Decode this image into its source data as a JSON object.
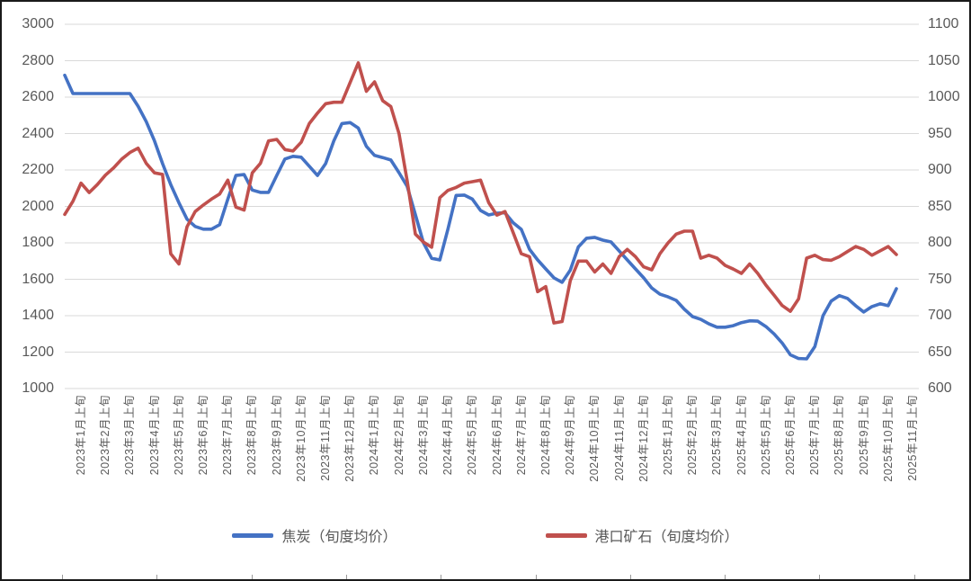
{
  "chart_data": {
    "type": "line",
    "title": "",
    "xlabel": "",
    "ylabel_left": "",
    "ylabel_right": "",
    "grid": "horizontal",
    "legend_position": "bottom",
    "background_color": "#FFFFFF",
    "text_color": "#595959",
    "gridline_color": "#D9D9D9",
    "left_axis": {
      "min": 1000,
      "max": 3000,
      "step": 200,
      "tick_labels": [
        "3000",
        "2800",
        "2600",
        "2400",
        "2200",
        "2000",
        "1800",
        "1600",
        "1400",
        "1200",
        "1000"
      ]
    },
    "right_axis": {
      "min": 600,
      "max": 1100,
      "step": 50,
      "tick_labels": [
        "1100",
        "1050",
        "1000",
        "950",
        "900",
        "850",
        "800",
        "750",
        "700",
        "650",
        "600"
      ]
    },
    "x_unit": "旬 (ten-day period), 3 per month, from 2023年1月上旬 to 2025年11月上旬",
    "x_tick_labels": [
      "2023年1月上旬",
      "2023年2月上旬",
      "2023年3月上旬",
      "2023年4月上旬",
      "2023年5月上旬",
      "2023年6月上旬",
      "2023年7月上旬",
      "2023年8月上旬",
      "2023年9月上旬",
      "2023年10月上旬",
      "2023年11月上旬",
      "2023年12月上旬",
      "2024年1月上旬",
      "2024年2月上旬",
      "2024年3月上旬",
      "2024年4月上旬",
      "2024年5月上旬",
      "2024年6月上旬",
      "2024年7月上旬",
      "2024年8月上旬",
      "2024年9月上旬",
      "2024年10月上旬",
      "2024年11月上旬",
      "2024年12月上旬",
      "2025年1月上旬",
      "2025年2月上旬",
      "2025年3月上旬",
      "2025年4月上旬",
      "2025年5月上旬",
      "2025年6月上旬",
      "2025年7月上旬",
      "2025年8月上旬",
      "2025年9月上旬",
      "2025年10月上旬",
      "2025年11月上旬"
    ],
    "series": [
      {
        "name": "焦炭（旬度均价）",
        "color": "#4472C4",
        "axis": "left",
        "values": [
          2720,
          2620,
          2620,
          2620,
          2620,
          2620,
          2620,
          2620,
          2620,
          2550,
          2465,
          2360,
          2235,
          2120,
          2020,
          1930,
          1890,
          1875,
          1875,
          1900,
          2040,
          2170,
          2175,
          2090,
          2077,
          2077,
          2170,
          2260,
          2275,
          2270,
          2220,
          2170,
          2235,
          2360,
          2455,
          2460,
          2430,
          2330,
          2280,
          2268,
          2255,
          2185,
          2110,
          1955,
          1800,
          1715,
          1706,
          1875,
          2060,
          2062,
          2040,
          1978,
          1953,
          1963,
          1965,
          1910,
          1874,
          1765,
          1706,
          1657,
          1608,
          1583,
          1650,
          1778,
          1825,
          1830,
          1815,
          1805,
          1755,
          1706,
          1657,
          1608,
          1552,
          1518,
          1503,
          1484,
          1435,
          1395,
          1380,
          1355,
          1337,
          1337,
          1345,
          1362,
          1372,
          1370,
          1340,
          1300,
          1250,
          1185,
          1165,
          1163,
          1230,
          1400,
          1480,
          1510,
          1495,
          1455,
          1420,
          1450,
          1465,
          1455,
          1548
        ]
      },
      {
        "name": "港口矿石（旬度均价）",
        "color": "#C0504D",
        "axis": "right",
        "values": [
          839,
          857,
          882,
          869,
          880,
          893,
          903,
          915,
          924,
          930,
          909,
          896,
          894,
          785,
          771,
          822,
          843,
          852,
          860,
          867,
          886,
          849,
          845,
          896,
          909,
          940,
          942,
          928,
          926,
          938,
          964,
          978,
          991,
          993,
          993,
          1020,
          1047,
          1008,
          1021,
          995,
          987,
          950,
          885,
          812,
          801,
          794,
          862,
          872,
          876,
          882,
          884,
          886,
          855,
          838,
          843,
          814,
          785,
          781,
          733,
          740,
          690,
          692,
          748,
          775,
          775,
          760,
          771,
          758,
          781,
          791,
          781,
          767,
          763,
          785,
          800,
          812,
          816,
          816,
          779,
          783,
          779,
          769,
          764,
          758,
          771,
          758,
          742,
          728,
          714,
          706,
          723,
          779,
          783,
          777,
          776,
          781,
          788,
          795,
          791,
          783,
          789,
          795,
          784
        ]
      }
    ]
  },
  "legend": {
    "items": [
      {
        "label": "焦炭（旬度均价）",
        "color": "#4472C4"
      },
      {
        "label": "港口矿石（旬度均价）",
        "color": "#C0504D"
      }
    ]
  }
}
